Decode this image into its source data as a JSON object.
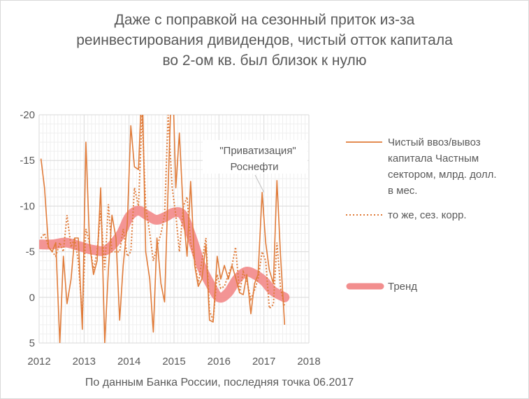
{
  "chart_data": {
    "type": "line",
    "title_lines": [
      "Даже с поправкой на сезонный приток из-за",
      "реинвестирования дивидендов, чистый отток капитала",
      "во 2-ом кв. был близок к нулю"
    ],
    "xlabel": "",
    "ylabel": "",
    "x_ticks": [
      "2012",
      "2013",
      "2014",
      "2015",
      "2016",
      "2017",
      "2018"
    ],
    "y_ticks": [
      "-20",
      "-15",
      "-10",
      "-5",
      "0",
      "5"
    ],
    "xlim": [
      2012,
      2018
    ],
    "ylim": [
      5,
      -20
    ],
    "y_inverted": true,
    "gridlines": true,
    "annotation": {
      "lines": [
        "\"Приватизация\"",
        "Роснефти"
      ],
      "x": 2017.0,
      "y": -11.5
    },
    "source_note": "По данным Банка России, последняя точка 06.2017",
    "series": [
      {
        "name": "Чистый ввоз/вывоз капитала Частным сектором, млрд. долл. в мес.",
        "legend_lines": [
          "Чистый ввоз/вывоз",
          "капитала Частным",
          "сектором, млрд. долл.",
          "в мес."
        ],
        "style": "solid",
        "color": "#E07B39",
        "x": [
          2012.04,
          2012.12,
          2012.21,
          2012.29,
          2012.37,
          2012.46,
          2012.54,
          2012.62,
          2012.71,
          2012.79,
          2012.87,
          2012.96,
          2013.04,
          2013.12,
          2013.21,
          2013.29,
          2013.37,
          2013.46,
          2013.54,
          2013.62,
          2013.71,
          2013.79,
          2013.87,
          2013.96,
          2014.04,
          2014.12,
          2014.21,
          2014.29,
          2014.37,
          2014.46,
          2014.54,
          2014.62,
          2014.71,
          2014.79,
          2014.87,
          2014.96,
          2015.04,
          2015.12,
          2015.21,
          2015.29,
          2015.37,
          2015.46,
          2015.54,
          2015.62,
          2015.71,
          2015.79,
          2015.87,
          2015.96,
          2016.04,
          2016.12,
          2016.21,
          2016.29,
          2016.37,
          2016.46,
          2016.54,
          2016.62,
          2016.71,
          2016.79,
          2016.87,
          2016.96,
          2017.04,
          2017.12,
          2017.21,
          2017.29,
          2017.37,
          2017.46
        ],
        "y": [
          -15.2,
          -12.0,
          -5.5,
          -5.0,
          -6.0,
          5.0,
          -4.5,
          0.7,
          -2.0,
          -6.5,
          -6.5,
          3.5,
          -17.0,
          -6.0,
          -2.5,
          -4.0,
          -12.0,
          5.0,
          -3.0,
          -9.0,
          -6.5,
          2.5,
          -3.5,
          -8.0,
          -18.8,
          -14.3,
          -14.0,
          -24.0,
          -5.0,
          -2.0,
          3.8,
          -6.5,
          -1.5,
          0.5,
          -12.0,
          -26.0,
          -12.0,
          -18.0,
          -9.0,
          -4.5,
          -12.7,
          -3.5,
          -1.2,
          -2.0,
          -5.8,
          2.5,
          2.7,
          -4.5,
          -2.0,
          -3.5,
          -2.0,
          -3.5,
          -2.2,
          -0.5,
          -0.3,
          -2.5,
          1.8,
          -1.5,
          -2.5,
          -11.5,
          -6.0,
          -3.0,
          -1.5,
          -12.8,
          -4.5,
          3.0
        ]
      },
      {
        "name": "то же, сез. корр.",
        "legend_lines": [
          "то же, сез. корр."
        ],
        "style": "dotted",
        "color": "#E07B39",
        "x": [
          2012.04,
          2012.12,
          2012.21,
          2012.29,
          2012.37,
          2012.46,
          2012.54,
          2012.62,
          2012.71,
          2012.79,
          2012.87,
          2012.96,
          2013.04,
          2013.12,
          2013.21,
          2013.29,
          2013.37,
          2013.46,
          2013.54,
          2013.62,
          2013.71,
          2013.79,
          2013.87,
          2013.96,
          2014.04,
          2014.12,
          2014.21,
          2014.29,
          2014.37,
          2014.46,
          2014.54,
          2014.62,
          2014.71,
          2014.79,
          2014.87,
          2014.96,
          2015.04,
          2015.12,
          2015.21,
          2015.29,
          2015.37,
          2015.46,
          2015.54,
          2015.62,
          2015.71,
          2015.79,
          2015.87,
          2015.96,
          2016.04,
          2016.12,
          2016.21,
          2016.29,
          2016.37,
          2016.46,
          2016.54,
          2016.62,
          2016.71,
          2016.79,
          2016.87,
          2016.96,
          2017.04,
          2017.12,
          2017.21,
          2017.29,
          2017.37,
          2017.46
        ],
        "y": [
          -6.5,
          -7.0,
          -5.5,
          -5.0,
          -4.5,
          -6.0,
          -5.0,
          -9.0,
          -5.5,
          -6.5,
          -4.0,
          2.0,
          -7.5,
          -6.0,
          -3.0,
          -5.0,
          -9.5,
          -3.0,
          -10.2,
          -5.0,
          -5.0,
          -5.0,
          -7.5,
          -4.5,
          -5.0,
          -12.0,
          -10.0,
          -20.0,
          -10.0,
          -7.0,
          -4.0,
          -5.5,
          -7.0,
          -9.0,
          -20.0,
          -12.0,
          -9.0,
          -5.0,
          -10.0,
          -11.0,
          -6.0,
          -4.0,
          -1.5,
          -4.0,
          -6.5,
          1.5,
          2.5,
          -2.5,
          -1.0,
          -1.2,
          -2.5,
          -3.5,
          -5.5,
          -0.5,
          -2.8,
          -1.8,
          0.2,
          -0.8,
          -2.0,
          -5.0,
          -4.0,
          1.2,
          0.8,
          -6.0,
          -1.0,
          1.0
        ]
      },
      {
        "name": "Тренд",
        "legend_lines": [
          "Тренд"
        ],
        "style": "thick",
        "color": "#F28E8E",
        "x": [
          2012.04,
          2012.3,
          2012.6,
          2012.9,
          2013.2,
          2013.5,
          2013.8,
          2014.0,
          2014.2,
          2014.4,
          2014.6,
          2014.8,
          2015.0,
          2015.2,
          2015.4,
          2015.6,
          2015.8,
          2016.0,
          2016.2,
          2016.4,
          2016.6,
          2016.8,
          2017.0,
          2017.2,
          2017.46
        ],
        "y": [
          -5.8,
          -5.8,
          -6.0,
          -5.6,
          -5.2,
          -5.2,
          -6.8,
          -8.8,
          -9.5,
          -9.0,
          -8.5,
          -8.8,
          -9.3,
          -9.0,
          -6.5,
          -3.5,
          -1.5,
          0.0,
          -0.5,
          -2.0,
          -2.8,
          -2.5,
          -1.8,
          -0.7,
          0.0
        ]
      }
    ]
  }
}
